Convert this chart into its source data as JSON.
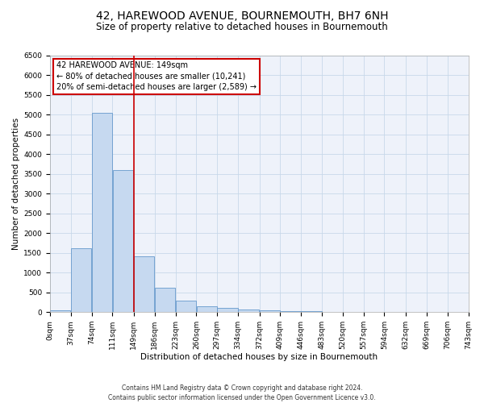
{
  "title": "42, HAREWOOD AVENUE, BOURNEMOUTH, BH7 6NH",
  "subtitle": "Size of property relative to detached houses in Bournemouth",
  "xlabel": "Distribution of detached houses by size in Bournemouth",
  "ylabel": "Number of detached properties",
  "bin_edges": [
    0,
    37,
    74,
    111,
    149,
    186,
    223,
    260,
    297,
    334,
    372,
    409,
    446,
    483,
    520,
    557,
    594,
    632,
    669,
    706,
    743
  ],
  "bar_heights": [
    50,
    1620,
    5050,
    3600,
    1420,
    620,
    300,
    150,
    100,
    75,
    50,
    30,
    20,
    8,
    5,
    3,
    2,
    1,
    1,
    0
  ],
  "bar_color": "#c6d9f0",
  "bar_edge_color": "#6699cc",
  "vline_x": 149,
  "vline_color": "#cc0000",
  "ylim": [
    0,
    6500
  ],
  "yticks": [
    0,
    500,
    1000,
    1500,
    2000,
    2500,
    3000,
    3500,
    4000,
    4500,
    5000,
    5500,
    6000,
    6500
  ],
  "annotation_box_text": "42 HAREWOOD AVENUE: 149sqm\n← 80% of detached houses are smaller (10,241)\n20% of semi-detached houses are larger (2,589) →",
  "annotation_box_color": "#cc0000",
  "footer_line1": "Contains HM Land Registry data © Crown copyright and database right 2024.",
  "footer_line2": "Contains public sector information licensed under the Open Government Licence v3.0.",
  "bg_color": "#eef2fa",
  "grid_color": "#c8d8ea",
  "title_fontsize": 10,
  "subtitle_fontsize": 8.5,
  "axis_label_fontsize": 7.5,
  "tick_fontsize": 6.5,
  "footer_fontsize": 5.5
}
